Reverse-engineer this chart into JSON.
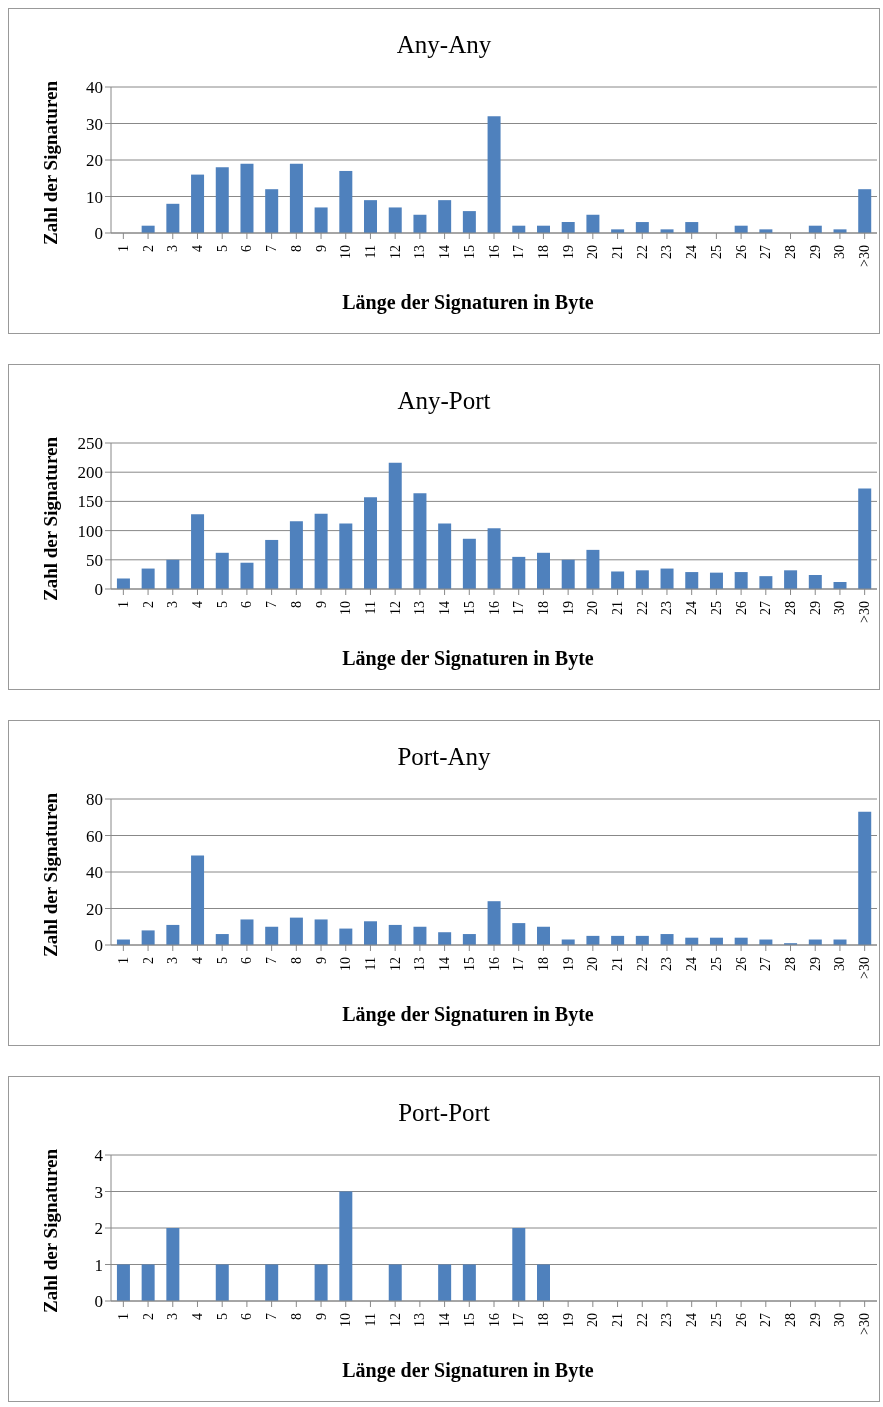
{
  "chart_data": [
    {
      "type": "bar",
      "title": "Any-Any",
      "xlabel": "Länge der Signaturen in Byte",
      "ylabel": "Zahl der Signaturen",
      "categories": [
        "1",
        "2",
        "3",
        "4",
        "5",
        "6",
        "7",
        "8",
        "9",
        "10",
        "11",
        "12",
        "13",
        "14",
        "15",
        "16",
        "17",
        "18",
        "19",
        "20",
        "21",
        "22",
        "23",
        "24",
        "25",
        "26",
        "27",
        "28",
        "29",
        "30",
        ">30"
      ],
      "values": [
        0,
        2,
        8,
        16,
        18,
        19,
        12,
        19,
        7,
        17,
        9,
        7,
        5,
        9,
        6,
        32,
        2,
        2,
        3,
        5,
        1,
        3,
        1,
        3,
        0,
        2,
        1,
        0,
        2,
        1,
        12
      ],
      "color": "#4f81bd",
      "ylim": [
        0,
        40
      ],
      "yticks": [
        0,
        10,
        20,
        30,
        40
      ],
      "grid": "y"
    },
    {
      "type": "bar",
      "title": "Any-Port",
      "xlabel": "Länge der Signaturen in Byte",
      "ylabel": "Zahl der Signaturen",
      "categories": [
        "1",
        "2",
        "3",
        "4",
        "5",
        "6",
        "7",
        "8",
        "9",
        "10",
        "11",
        "12",
        "13",
        "14",
        "15",
        "16",
        "17",
        "18",
        "19",
        "20",
        "21",
        "22",
        "23",
        "24",
        "25",
        "26",
        "27",
        "28",
        "29",
        "30",
        ">30"
      ],
      "values": [
        18,
        35,
        50,
        128,
        62,
        45,
        84,
        116,
        129,
        112,
        157,
        216,
        164,
        112,
        86,
        104,
        55,
        62,
        50,
        67,
        30,
        32,
        35,
        29,
        28,
        29,
        22,
        32,
        24,
        12,
        172
      ],
      "color": "#4f81bd",
      "ylim": [
        0,
        250
      ],
      "yticks": [
        0,
        50,
        100,
        150,
        200,
        250
      ],
      "grid": "y"
    },
    {
      "type": "bar",
      "title": "Port-Any",
      "xlabel": "Länge der Signaturen in Byte",
      "ylabel": "Zahl der Signaturen",
      "categories": [
        "1",
        "2",
        "3",
        "4",
        "5",
        "6",
        "7",
        "8",
        "9",
        "10",
        "11",
        "12",
        "13",
        "14",
        "15",
        "16",
        "17",
        "18",
        "19",
        "20",
        "21",
        "22",
        "23",
        "24",
        "25",
        "26",
        "27",
        "28",
        "29",
        "30",
        ">30"
      ],
      "values": [
        3,
        8,
        11,
        49,
        6,
        14,
        10,
        15,
        14,
        9,
        13,
        11,
        10,
        7,
        6,
        24,
        12,
        10,
        3,
        5,
        5,
        5,
        6,
        4,
        4,
        4,
        3,
        1,
        3,
        3,
        73
      ],
      "color": "#4f81bd",
      "ylim": [
        0,
        80
      ],
      "yticks": [
        0,
        20,
        40,
        60,
        80
      ],
      "grid": "y"
    },
    {
      "type": "bar",
      "title": "Port-Port",
      "xlabel": "Länge der Signaturen in Byte",
      "ylabel": "Zahl der Signaturen",
      "categories": [
        "1",
        "2",
        "3",
        "4",
        "5",
        "6",
        "7",
        "8",
        "9",
        "10",
        "11",
        "12",
        "13",
        "14",
        "15",
        "16",
        "17",
        "18",
        "19",
        "20",
        "21",
        "22",
        "23",
        "24",
        "25",
        "26",
        "27",
        "28",
        "29",
        "30",
        ">30"
      ],
      "values": [
        1,
        1,
        2,
        0,
        1,
        0,
        1,
        0,
        1,
        3,
        0,
        1,
        0,
        1,
        1,
        0,
        2,
        1,
        0,
        0,
        0,
        0,
        0,
        0,
        0,
        0,
        0,
        0,
        0,
        0,
        0
      ],
      "color": "#4f81bd",
      "ylim": [
        0,
        4
      ],
      "yticks": [
        0,
        1,
        2,
        3,
        4
      ],
      "grid": "y"
    }
  ]
}
